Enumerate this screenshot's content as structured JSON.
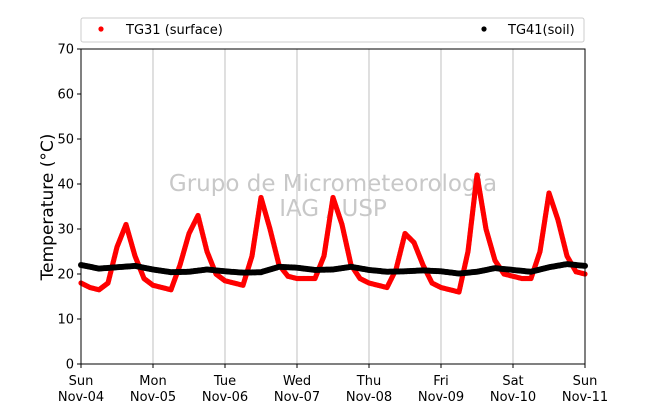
{
  "chart_data": {
    "type": "scatter",
    "ylabel": "Temperature (°C)",
    "ylim": [
      0,
      70
    ],
    "yticks": [
      0,
      10,
      20,
      30,
      40,
      50,
      60,
      70
    ],
    "xlim": [
      "2018-11-04T00:00",
      "2018-11-11T00:00"
    ],
    "xticks": [
      {
        "day": "Sun",
        "date": "Nov-04"
      },
      {
        "day": "Mon",
        "date": "Nov-05"
      },
      {
        "day": "Tue",
        "date": "Nov-06"
      },
      {
        "day": "Wed",
        "date": "Nov-07"
      },
      {
        "day": "Thu",
        "date": "Nov-08"
      },
      {
        "day": "Fri",
        "date": "Nov-09"
      },
      {
        "day": "Sat",
        "date": "Nov-10"
      },
      {
        "day": "Sun",
        "date": "Nov-11"
      }
    ],
    "grid": "vertical",
    "legend_position": "top",
    "watermark": [
      "Grupo de Micrometeorologia",
      "IAG / USP"
    ],
    "series": [
      {
        "name": "TG31 (surface)",
        "color": "#ff0000",
        "x": [
          "2018-11-04T00:00",
          "2018-11-04T03:00",
          "2018-11-04T06:00",
          "2018-11-04T09:00",
          "2018-11-04T12:00",
          "2018-11-04T15:00",
          "2018-11-04T18:00",
          "2018-11-04T21:00",
          "2018-11-05T00:00",
          "2018-11-05T03:00",
          "2018-11-05T06:00",
          "2018-11-05T09:00",
          "2018-11-05T12:00",
          "2018-11-05T15:00",
          "2018-11-05T18:00",
          "2018-11-05T21:00",
          "2018-11-06T00:00",
          "2018-11-06T03:00",
          "2018-11-06T06:00",
          "2018-11-06T09:00",
          "2018-11-06T12:00",
          "2018-11-06T15:00",
          "2018-11-06T18:00",
          "2018-11-06T21:00",
          "2018-11-07T00:00",
          "2018-11-07T03:00",
          "2018-11-07T06:00",
          "2018-11-07T09:00",
          "2018-11-07T12:00",
          "2018-11-07T15:00",
          "2018-11-07T18:00",
          "2018-11-07T21:00",
          "2018-11-08T00:00",
          "2018-11-08T03:00",
          "2018-11-08T06:00",
          "2018-11-08T09:00",
          "2018-11-08T12:00",
          "2018-11-08T15:00",
          "2018-11-08T18:00",
          "2018-11-08T21:00",
          "2018-11-09T00:00",
          "2018-11-09T03:00",
          "2018-11-09T06:00",
          "2018-11-09T09:00",
          "2018-11-09T12:00",
          "2018-11-09T15:00",
          "2018-11-09T18:00",
          "2018-11-09T21:00",
          "2018-11-10T00:00",
          "2018-11-10T03:00",
          "2018-11-10T06:00",
          "2018-11-10T09:00",
          "2018-11-10T12:00",
          "2018-11-10T15:00",
          "2018-11-10T18:00",
          "2018-11-10T21:00",
          "2018-11-11T00:00"
        ],
        "y": [
          18,
          17,
          16.5,
          18,
          26,
          31,
          24,
          19,
          17.5,
          17,
          16.5,
          22,
          29,
          33,
          25,
          20,
          18.5,
          18,
          17.5,
          24,
          37,
          30,
          22,
          19.5,
          19,
          19,
          19,
          24,
          37,
          31,
          22,
          19,
          18,
          17.5,
          17,
          21,
          29,
          27,
          22,
          18,
          17,
          16.5,
          16,
          25,
          42,
          30,
          23,
          20,
          19.5,
          19,
          19,
          25,
          38,
          32,
          24,
          20.5,
          20
        ]
      },
      {
        "name": "TG41(soil)",
        "color": "#000000",
        "x": [
          "2018-11-04T00:00",
          "2018-11-04T06:00",
          "2018-11-04T12:00",
          "2018-11-04T18:00",
          "2018-11-05T00:00",
          "2018-11-05T06:00",
          "2018-11-05T12:00",
          "2018-11-05T18:00",
          "2018-11-06T00:00",
          "2018-11-06T06:00",
          "2018-11-06T12:00",
          "2018-11-06T18:00",
          "2018-11-07T00:00",
          "2018-11-07T06:00",
          "2018-11-07T12:00",
          "2018-11-07T18:00",
          "2018-11-08T00:00",
          "2018-11-08T06:00",
          "2018-11-08T12:00",
          "2018-11-08T18:00",
          "2018-11-09T00:00",
          "2018-11-09T06:00",
          "2018-11-09T12:00",
          "2018-11-09T18:00",
          "2018-11-10T00:00",
          "2018-11-10T06:00",
          "2018-11-10T12:00",
          "2018-11-10T18:00",
          "2018-11-11T00:00"
        ],
        "y": [
          22,
          21.2,
          21.5,
          21.8,
          21,
          20.4,
          20.5,
          21,
          20.6,
          20.3,
          20.4,
          21.6,
          21.4,
          20.9,
          21,
          21.6,
          20.9,
          20.5,
          20.6,
          20.8,
          20.6,
          20.1,
          20.5,
          21.3,
          20.9,
          20.5,
          21.5,
          22.2,
          21.8
        ]
      }
    ]
  }
}
